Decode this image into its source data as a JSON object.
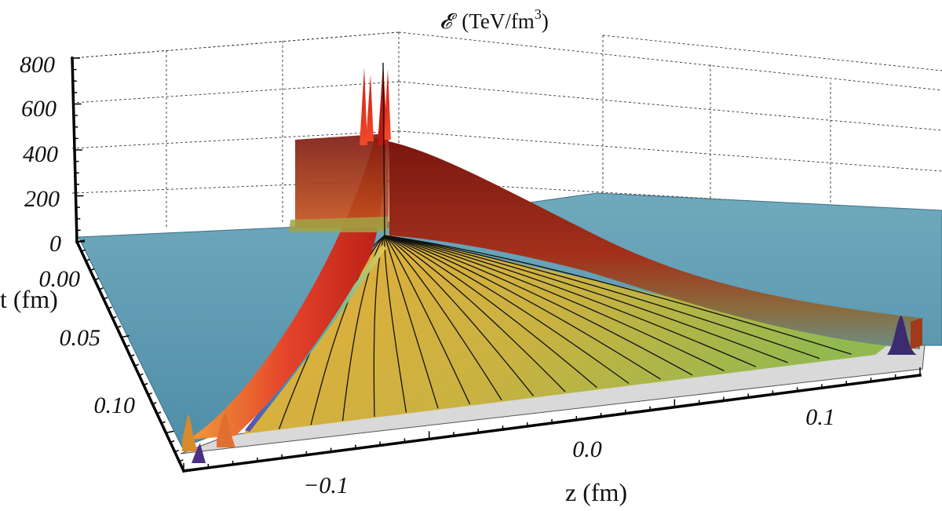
{
  "chart_data": {
    "type": "surface3d",
    "title": "𝓔 (TeV/fm³)",
    "title_parts": {
      "symbol": "𝓔",
      "unit_main": "(TeV/fm",
      "unit_exp": "3",
      "unit_close": ")"
    },
    "zlabel": "𝓔 (TeV/fm³)",
    "xlabel": "z (fm)",
    "ylabel": "t (fm)",
    "energy_ticks": [
      "0",
      "200",
      "400",
      "600",
      "800"
    ],
    "energy_range": [
      0,
      800
    ],
    "z_ticks": [
      "−0.1",
      "0.0",
      "0.1"
    ],
    "z_range": [
      -0.15,
      0.15
    ],
    "t_ticks": [
      "0.00",
      "0.05",
      "0.10"
    ],
    "t_range": [
      0.0,
      0.12
    ],
    "features": {
      "background_level": 0,
      "central_spikes_peak": 800,
      "front_ridge_peak": 400,
      "contour_lines": 20,
      "colors": {
        "background": "#5e9cb5",
        "ridge": "#8c1e14",
        "ridge_bright": "#e83224",
        "interior_warm": "#e3aa3c",
        "interior_cool": "#96b84a",
        "base": "#d9d9d9"
      }
    }
  }
}
